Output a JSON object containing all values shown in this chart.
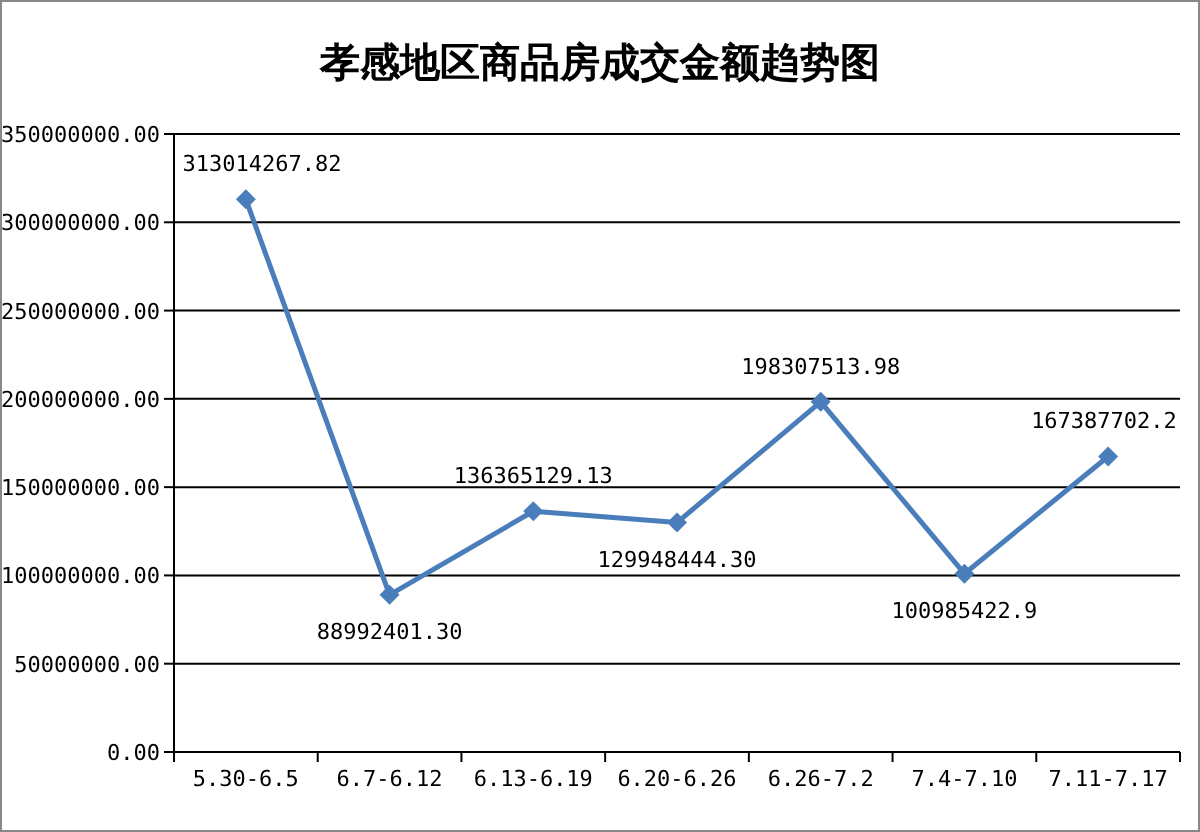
{
  "chart_data": {
    "type": "line",
    "title": "孝感地区商品房成交金额趋势图",
    "categories": [
      "5.30-6.5",
      "6.7-6.12",
      "6.13-6.19",
      "6.20-6.26",
      "6.26-7.2",
      "7.4-7.10",
      "7.11-7.17"
    ],
    "series": [
      {
        "color": "#4a7ebb",
        "values": [
          313014267.82,
          88992401.3,
          136365129.13,
          129948444.3,
          198307513.98,
          100985422.9,
          167387702.2
        ],
        "value_labels": [
          "313014267.82",
          "88992401.30",
          "136365129.13",
          "129948444.30",
          "198307513.98",
          "100985422.9",
          "167387702.2"
        ]
      }
    ],
    "ylim": [
      0,
      350000000
    ],
    "yticks": [
      {
        "value": 0,
        "label": "0.00"
      },
      {
        "value": 50000000,
        "label": "50000000.00"
      },
      {
        "value": 100000000,
        "label": "100000000.00"
      },
      {
        "value": 150000000,
        "label": "150000000.00"
      },
      {
        "value": 200000000,
        "label": "200000000.00"
      },
      {
        "value": 250000000,
        "label": "250000000.00"
      },
      {
        "value": 300000000,
        "label": "300000000.00"
      },
      {
        "value": 350000000,
        "label": "350000000.00"
      }
    ],
    "grid": "y",
    "marker": "diamond",
    "line_style": "solid"
  }
}
